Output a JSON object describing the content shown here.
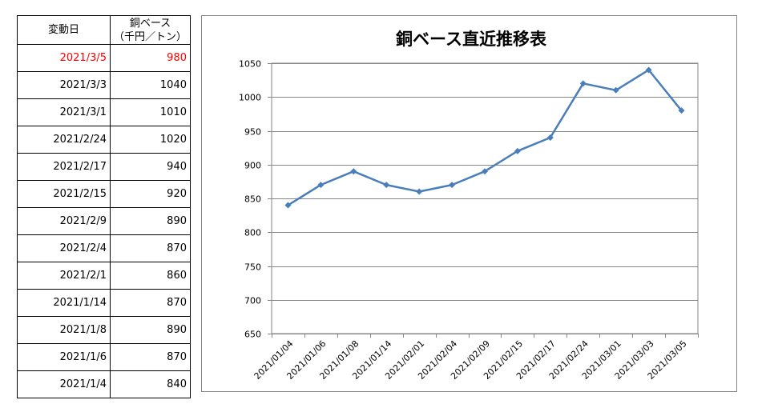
{
  "table": {
    "headers": [
      "変動日",
      "銅ベース\n（千円／トン）"
    ],
    "rows": [
      [
        "2021/3/5",
        "980"
      ],
      [
        "2021/3/3",
        "1040"
      ],
      [
        "2021/3/1",
        "1010"
      ],
      [
        "2021/2/24",
        "1020"
      ],
      [
        "2021/2/17",
        "940"
      ],
      [
        "2021/2/15",
        "920"
      ],
      [
        "2021/2/9",
        "890"
      ],
      [
        "2021/2/4",
        "870"
      ],
      [
        "2021/2/1",
        "860"
      ],
      [
        "2021/1/14",
        "870"
      ],
      [
        "2021/1/8",
        "890"
      ],
      [
        "2021/1/6",
        "870"
      ],
      [
        "2021/1/4",
        "840"
      ]
    ],
    "highlight_color": "#ff0000"
  },
  "chart_data": {
    "type": "line",
    "title": "銅ベース直近推移表",
    "xlabel": "",
    "ylabel": "",
    "categories": [
      "2021/01/04",
      "2021/01/06",
      "2021/01/08",
      "2021/01/14",
      "2021/02/01",
      "2021/02/04",
      "2021/02/09",
      "2021/02/15",
      "2021/02/17",
      "2021/02/24",
      "2021/03/01",
      "2021/03/03",
      "2021/03/05"
    ],
    "series": [
      {
        "values": [
          840,
          870,
          890,
          870,
          860,
          870,
          890,
          920,
          940,
          1020,
          1010,
          1040,
          980
        ]
      }
    ],
    "ylim": [
      650,
      1050
    ],
    "yticks": [
      650,
      700,
      750,
      800,
      850,
      900,
      950,
      1000,
      1050
    ],
    "grid": true,
    "legend": "none",
    "line_color": "#4a7ebb",
    "gridline_color": "#868686"
  }
}
